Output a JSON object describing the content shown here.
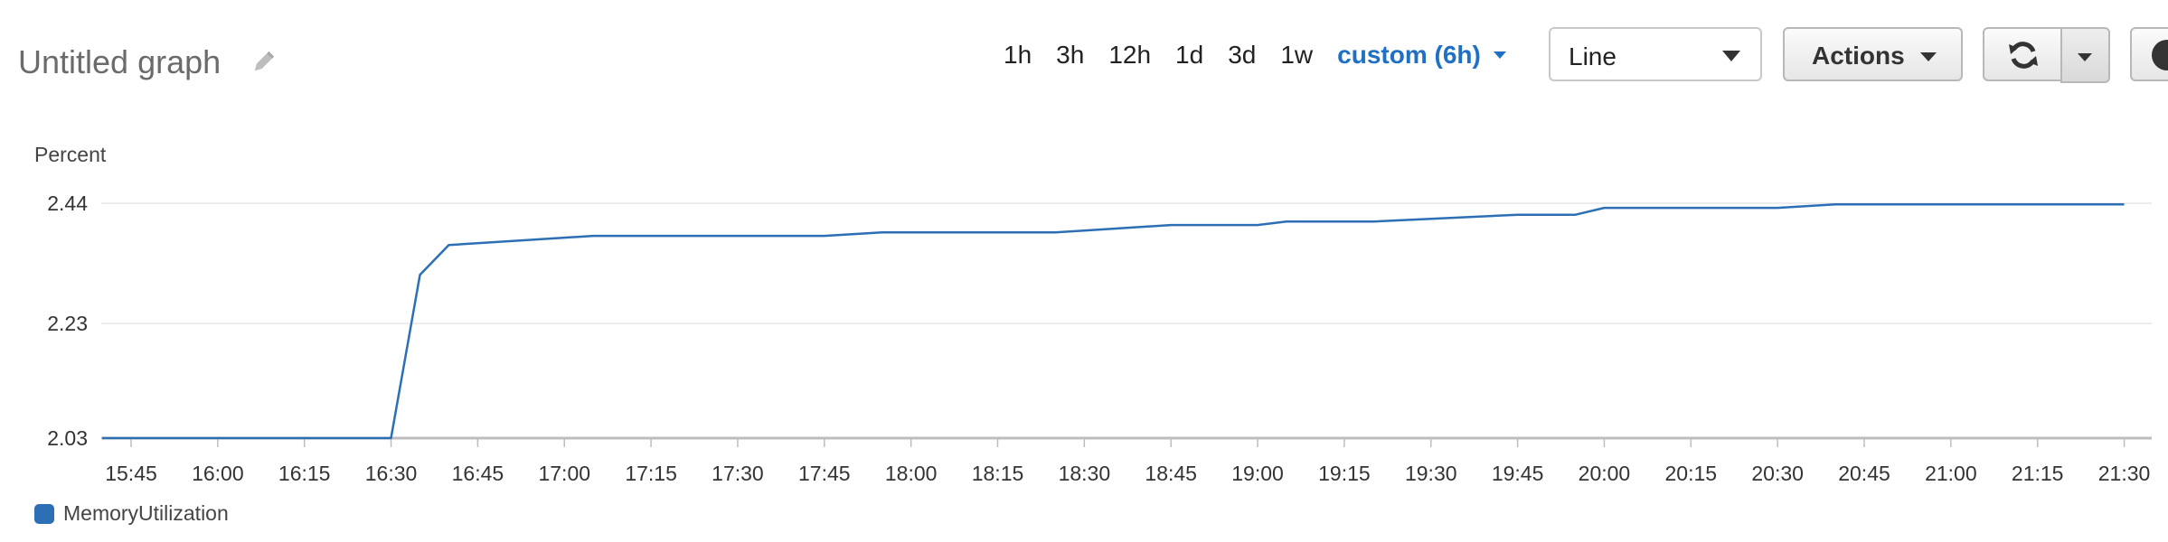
{
  "header": {
    "title": "Untitled graph",
    "edit_icon": "pencil-icon",
    "time_ranges": [
      "1h",
      "3h",
      "12h",
      "1d",
      "3d",
      "1w"
    ],
    "custom_range": "custom (6h)",
    "chart_type_select": "Line",
    "actions_label": "Actions",
    "refresh_icon": "refresh-icon",
    "help_icon": "help-icon"
  },
  "colors": {
    "accent": "#1f6fc5",
    "series": "#2d6fb5",
    "grid": "#e6e6e6"
  },
  "chart_data": {
    "type": "line",
    "title": "",
    "ylabel": "Percent",
    "xlabel": "",
    "ylim": [
      2.03,
      2.44
    ],
    "y_ticks": [
      "2.44",
      "2.23",
      "2.03"
    ],
    "x_ticks": [
      "15:45",
      "16:00",
      "16:15",
      "16:30",
      "16:45",
      "17:00",
      "17:15",
      "17:30",
      "17:45",
      "18:00",
      "18:15",
      "18:30",
      "18:45",
      "19:00",
      "19:15",
      "19:30",
      "19:45",
      "20:00",
      "20:15",
      "20:30",
      "20:45",
      "21:00",
      "21:15",
      "21:30"
    ],
    "grid": true,
    "legend_position": "bottom-left",
    "series": [
      {
        "name": "MemoryUtilization",
        "color": "#2d6fb5",
        "points": [
          [
            "15:40",
            2.03
          ],
          [
            "16:30",
            2.03
          ],
          [
            "16:35",
            2.315
          ],
          [
            "16:40",
            2.367
          ],
          [
            "17:05",
            2.383
          ],
          [
            "17:45",
            2.383
          ],
          [
            "17:55",
            2.389
          ],
          [
            "18:25",
            2.389
          ],
          [
            "18:45",
            2.402
          ],
          [
            "19:00",
            2.402
          ],
          [
            "19:05",
            2.408
          ],
          [
            "19:20",
            2.408
          ],
          [
            "19:45",
            2.42
          ],
          [
            "19:55",
            2.42
          ],
          [
            "20:00",
            2.432
          ],
          [
            "20:30",
            2.432
          ],
          [
            "20:40",
            2.438
          ],
          [
            "21:30",
            2.438
          ]
        ]
      }
    ]
  }
}
